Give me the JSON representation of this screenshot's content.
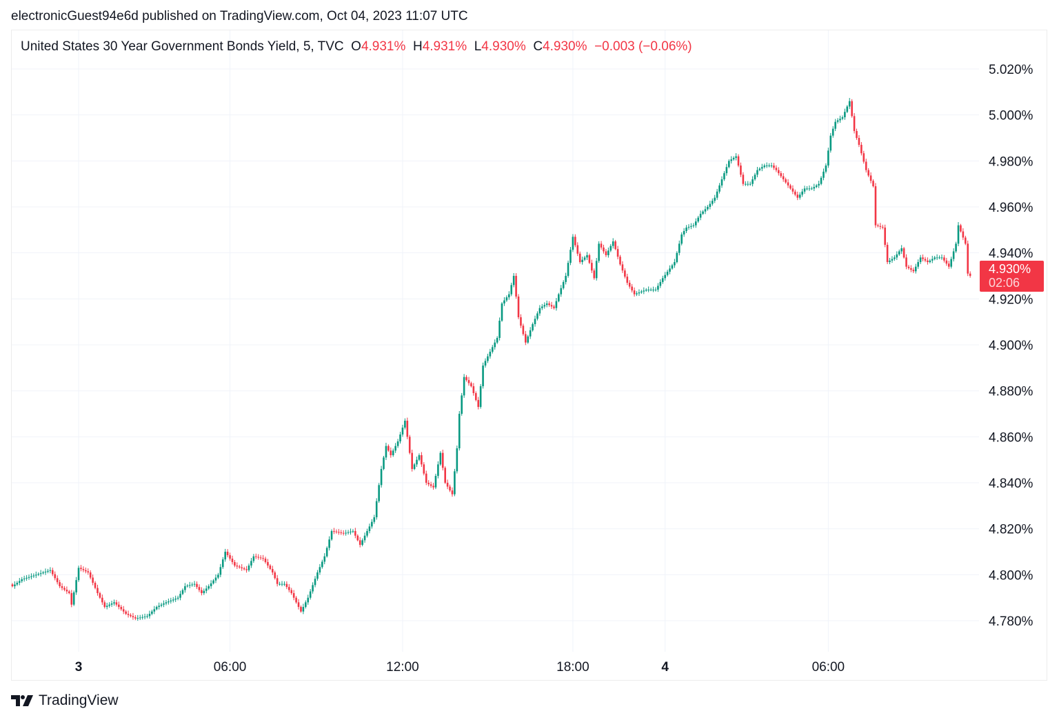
{
  "publisher_line": "electronicGuest94e6d published on TradingView.com, Oct 04, 2023 11:07 UTC",
  "legend": {
    "symbol": "United States 30 Year Government Bonds Yield, 5, TVC",
    "o_label": "O",
    "o_value": "4.931%",
    "h_label": "H",
    "h_value": "4.931%",
    "l_label": "L",
    "l_value": "4.930%",
    "c_label": "C",
    "c_value": "4.930%",
    "change": "−0.003 (−0.06%)"
  },
  "last_price": {
    "value": "4.930%",
    "countdown": "02:06"
  },
  "brand": "TradingView",
  "colors": {
    "up": "#089981",
    "down": "#f23645",
    "grid": "#f0f3fa",
    "text": "#131722"
  },
  "chart_data": {
    "type": "candlestick",
    "title": "United States 30 Year Government Bonds Yield, 5, TVC",
    "interval_minutes": 5,
    "ylim": [
      4.765,
      5.036
    ],
    "y_ticks": [
      "5.020%",
      "5.000%",
      "4.980%",
      "4.960%",
      "4.940%",
      "4.920%",
      "4.900%",
      "4.880%",
      "4.860%",
      "4.840%",
      "4.820%",
      "4.800%",
      "4.780%"
    ],
    "y_tick_values": [
      5.02,
      5.0,
      4.98,
      4.96,
      4.94,
      4.92,
      4.9,
      4.88,
      4.86,
      4.84,
      4.82,
      4.8,
      4.78
    ],
    "x_range_bars": [
      0,
      405
    ],
    "x_ticks": [
      {
        "label": "3",
        "bar": 28,
        "bold": true
      },
      {
        "label": "06:00",
        "bar": 92
      },
      {
        "label": "12:00",
        "bar": 165
      },
      {
        "label": "18:00",
        "bar": 237
      },
      {
        "label": "4",
        "bar": 276,
        "bold": true
      },
      {
        "label": "06:00",
        "bar": 345
      }
    ],
    "closes_by_bar": [
      [
        0,
        4.795
      ],
      [
        4,
        4.798
      ],
      [
        10,
        4.8
      ],
      [
        16,
        4.802
      ],
      [
        20,
        4.795
      ],
      [
        24,
        4.792
      ],
      [
        25,
        4.787
      ],
      [
        28,
        4.803
      ],
      [
        32,
        4.801
      ],
      [
        36,
        4.792
      ],
      [
        39,
        4.786
      ],
      [
        43,
        4.788
      ],
      [
        48,
        4.783
      ],
      [
        52,
        4.781
      ],
      [
        57,
        4.782
      ],
      [
        61,
        4.786
      ],
      [
        65,
        4.788
      ],
      [
        70,
        4.79
      ],
      [
        73,
        4.795
      ],
      [
        77,
        4.796
      ],
      [
        80,
        4.792
      ],
      [
        83,
        4.795
      ],
      [
        87,
        4.8
      ],
      [
        90,
        4.81
      ],
      [
        94,
        4.804
      ],
      [
        99,
        4.802
      ],
      [
        102,
        4.808
      ],
      [
        106,
        4.807
      ],
      [
        110,
        4.801
      ],
      [
        112,
        4.796
      ],
      [
        115,
        4.796
      ],
      [
        118,
        4.792
      ],
      [
        122,
        4.784
      ],
      [
        125,
        4.79
      ],
      [
        129,
        4.801
      ],
      [
        132,
        4.808
      ],
      [
        135,
        4.819
      ],
      [
        140,
        4.818
      ],
      [
        144,
        4.819
      ],
      [
        147,
        4.813
      ],
      [
        150,
        4.819
      ],
      [
        153,
        4.825
      ],
      [
        156,
        4.846
      ],
      [
        158,
        4.856
      ],
      [
        160,
        4.852
      ],
      [
        163,
        4.858
      ],
      [
        166,
        4.867
      ],
      [
        169,
        4.846
      ],
      [
        172,
        4.852
      ],
      [
        175,
        4.84
      ],
      [
        178,
        4.838
      ],
      [
        181,
        4.853
      ],
      [
        183,
        4.84
      ],
      [
        186,
        4.835
      ],
      [
        188,
        4.855
      ],
      [
        189,
        4.87
      ],
      [
        191,
        4.886
      ],
      [
        194,
        4.882
      ],
      [
        197,
        4.873
      ],
      [
        199,
        4.891
      ],
      [
        202,
        4.897
      ],
      [
        205,
        4.903
      ],
      [
        207,
        4.918
      ],
      [
        210,
        4.922
      ],
      [
        212,
        4.93
      ],
      [
        214,
        4.912
      ],
      [
        217,
        4.901
      ],
      [
        220,
        4.909
      ],
      [
        223,
        4.916
      ],
      [
        226,
        4.918
      ],
      [
        229,
        4.916
      ],
      [
        231,
        4.922
      ],
      [
        234,
        4.93
      ],
      [
        237,
        4.947
      ],
      [
        240,
        4.936
      ],
      [
        243,
        4.939
      ],
      [
        246,
        4.929
      ],
      [
        248,
        4.944
      ],
      [
        251,
        4.939
      ],
      [
        254,
        4.945
      ],
      [
        257,
        4.935
      ],
      [
        260,
        4.927
      ],
      [
        263,
        4.922
      ],
      [
        268,
        4.924
      ],
      [
        272,
        4.924
      ],
      [
        275,
        4.929
      ],
      [
        280,
        4.936
      ],
      [
        283,
        4.948
      ],
      [
        285,
        4.951
      ],
      [
        288,
        4.952
      ],
      [
        291,
        4.957
      ],
      [
        294,
        4.96
      ],
      [
        297,
        4.964
      ],
      [
        300,
        4.972
      ],
      [
        303,
        4.98
      ],
      [
        306,
        4.982
      ],
      [
        309,
        4.97
      ],
      [
        312,
        4.97
      ],
      [
        315,
        4.976
      ],
      [
        318,
        4.978
      ],
      [
        321,
        4.978
      ],
      [
        323,
        4.976
      ],
      [
        326,
        4.972
      ],
      [
        329,
        4.968
      ],
      [
        332,
        4.964
      ],
      [
        335,
        4.968
      ],
      [
        338,
        4.968
      ],
      [
        341,
        4.97
      ],
      [
        344,
        4.978
      ],
      [
        346,
        4.991
      ],
      [
        348,
        4.997
      ],
      [
        351,
        4.999
      ],
      [
        354,
        5.006
      ],
      [
        356,
        4.993
      ],
      [
        358,
        4.987
      ],
      [
        361,
        4.976
      ],
      [
        364,
        4.969
      ],
      [
        365,
        4.952
      ],
      [
        368,
        4.951
      ],
      [
        370,
        4.936
      ],
      [
        373,
        4.938
      ],
      [
        376,
        4.942
      ],
      [
        378,
        4.934
      ],
      [
        381,
        4.932
      ],
      [
        384,
        4.938
      ],
      [
        387,
        4.936
      ],
      [
        390,
        4.938
      ],
      [
        393,
        4.938
      ],
      [
        396,
        4.934
      ],
      [
        399,
        4.944
      ],
      [
        400,
        4.952
      ],
      [
        403,
        4.944
      ],
      [
        404,
        4.931
      ],
      [
        405,
        4.93
      ]
    ]
  }
}
